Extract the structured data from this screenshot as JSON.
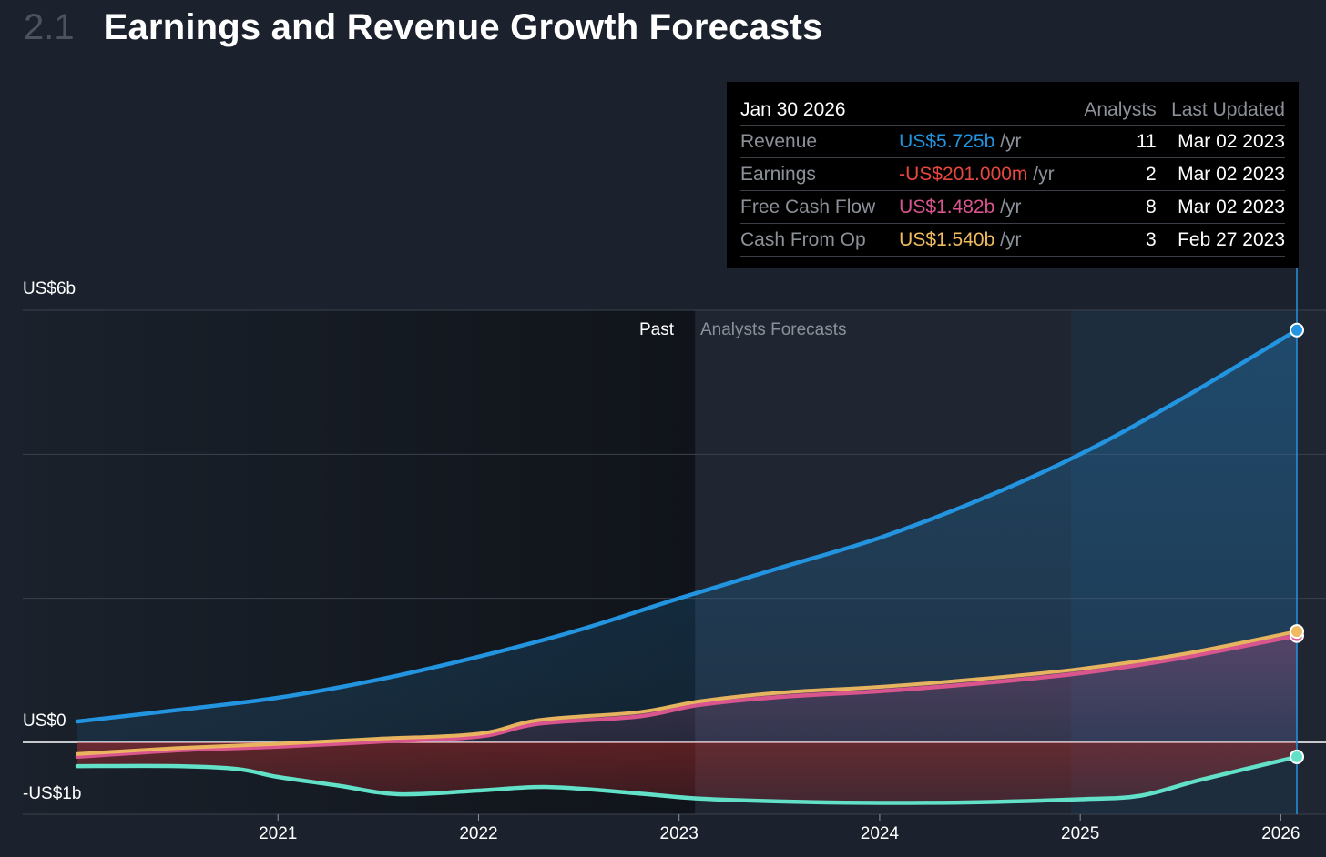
{
  "header": {
    "section_number": "2.1",
    "title": "Earnings and Revenue Growth Forecasts"
  },
  "colors": {
    "revenue": "#2394e0",
    "earnings": "#62e0c8",
    "free_cash_flow": "#d9558e",
    "cash_from_op": "#f0bb60",
    "earnings_text": "#e8473f",
    "background": "#1b222d"
  },
  "tooltip": {
    "date": "Jan 30 2026",
    "col_analysts": "Analysts",
    "col_last_updated": "Last Updated",
    "rows": [
      {
        "label": "Revenue",
        "value": "US$5.725b",
        "unit": "/yr",
        "analysts": "11",
        "updated": "Mar 02 2023"
      },
      {
        "label": "Earnings",
        "value": "-US$201.000m",
        "unit": "/yr",
        "analysts": "2",
        "updated": "Mar 02 2023"
      },
      {
        "label": "Free Cash Flow",
        "value": "US$1.482b",
        "unit": "/yr",
        "analysts": "8",
        "updated": "Mar 02 2023"
      },
      {
        "label": "Cash From Op",
        "value": "US$1.540b",
        "unit": "/yr",
        "analysts": "3",
        "updated": "Feb 27 2023"
      }
    ]
  },
  "regions": {
    "past": "Past",
    "forecast": "Analysts Forecasts"
  },
  "chart_data": {
    "type": "area",
    "y_tick_labels": [
      "US$6b",
      "US$0",
      "-US$1b"
    ],
    "x_tick_labels": [
      "2021",
      "2022",
      "2023",
      "2024",
      "2025",
      "2026"
    ],
    "ylim": [
      -1.0,
      6.0
    ],
    "xlim": [
      2020.0,
      2026.15
    ],
    "grid": true,
    "past_forecast_boundary": 2023.08,
    "selected_x": 2026.08,
    "series": [
      {
        "name": "Revenue",
        "x": [
          2020.0,
          2020.5,
          2021.0,
          2021.5,
          2022.0,
          2022.5,
          2023.0,
          2023.5,
          2024.0,
          2024.5,
          2025.0,
          2025.5,
          2026.08
        ],
        "y": [
          0.29,
          0.45,
          0.62,
          0.87,
          1.19,
          1.56,
          2.0,
          2.42,
          2.84,
          3.37,
          4.0,
          4.76,
          5.725
        ]
      },
      {
        "name": "Earnings",
        "x": [
          2020.0,
          2020.5,
          2020.8,
          2021.0,
          2021.3,
          2021.6,
          2022.0,
          2022.35,
          2022.8,
          2023.1,
          2023.5,
          2024.0,
          2024.5,
          2025.0,
          2025.3,
          2025.6,
          2026.08
        ],
        "y": [
          -0.33,
          -0.33,
          -0.37,
          -0.48,
          -0.6,
          -0.72,
          -0.67,
          -0.62,
          -0.71,
          -0.78,
          -0.82,
          -0.84,
          -0.83,
          -0.79,
          -0.74,
          -0.52,
          -0.201
        ]
      },
      {
        "name": "Free Cash Flow",
        "x": [
          2020.0,
          2020.5,
          2021.0,
          2021.5,
          2022.0,
          2022.3,
          2022.8,
          2023.1,
          2023.5,
          2024.0,
          2024.5,
          2025.0,
          2025.5,
          2026.08
        ],
        "y": [
          -0.2,
          -0.11,
          -0.06,
          0.01,
          0.08,
          0.26,
          0.36,
          0.52,
          0.63,
          0.71,
          0.82,
          0.96,
          1.17,
          1.482
        ]
      },
      {
        "name": "Cash From Op",
        "x": [
          2020.0,
          2020.5,
          2021.0,
          2021.5,
          2022.0,
          2022.3,
          2022.8,
          2023.1,
          2023.5,
          2024.0,
          2024.5,
          2025.0,
          2025.5,
          2026.08
        ],
        "y": [
          -0.16,
          -0.08,
          -0.02,
          0.05,
          0.12,
          0.31,
          0.42,
          0.57,
          0.69,
          0.77,
          0.88,
          1.02,
          1.22,
          1.54
        ]
      }
    ]
  }
}
